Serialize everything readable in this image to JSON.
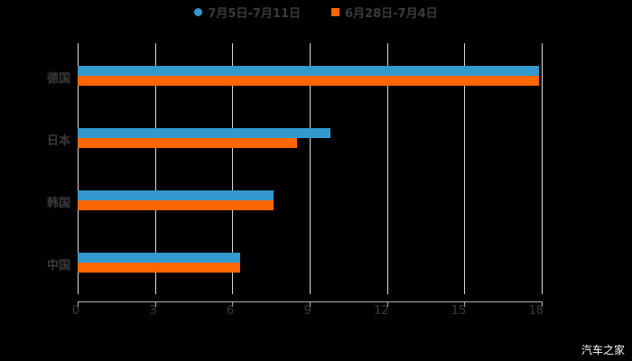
{
  "chart_data": {
    "type": "bar",
    "orientation": "horizontal",
    "title": "",
    "xlabel": "",
    "ylabel": "",
    "categories": [
      "德国",
      "日本",
      "韩国",
      "中国"
    ],
    "series": [
      {
        "name": "7月5日-7月11日",
        "color": "#3399cc",
        "values": [
          17.9,
          9.8,
          7.6,
          6.3
        ]
      },
      {
        "name": "6月28日-7月4日",
        "color": "#ff6600",
        "values": [
          17.9,
          8.5,
          7.6,
          6.3
        ]
      }
    ],
    "xlim": [
      0,
      18
    ],
    "xticks": [
      "0",
      "3",
      "6",
      "9",
      "12",
      "15",
      "18"
    ],
    "grid": true,
    "legend_position": "top"
  },
  "legend": {
    "items": [
      {
        "label": "7月5日-7月11日",
        "color": "#3399cc"
      },
      {
        "label": "6月28日-7月4日",
        "color": "#ff6600"
      }
    ]
  },
  "watermark": "汽车之家"
}
